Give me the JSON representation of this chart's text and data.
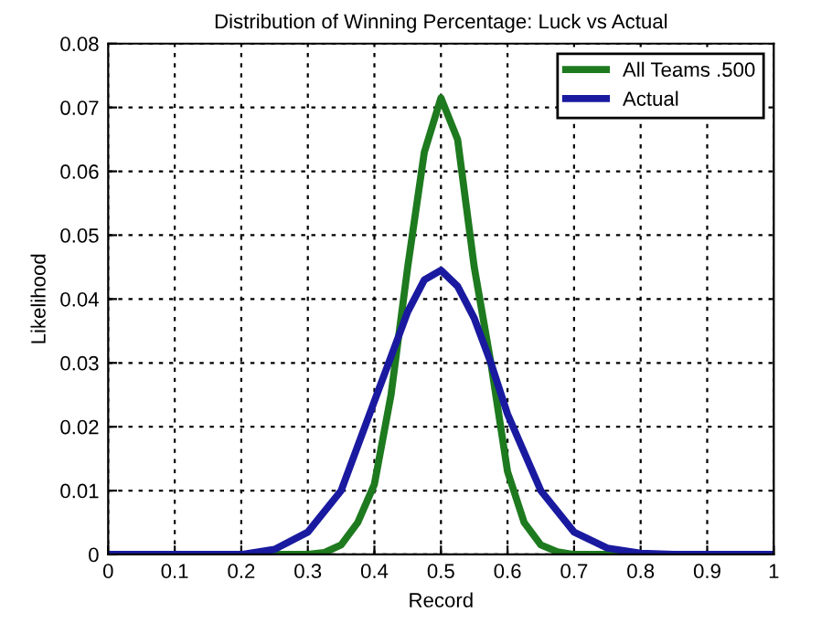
{
  "chart_data": {
    "type": "line",
    "title": "Distribution of Winning Percentage: Luck vs Actual",
    "xlabel": "Record",
    "ylabel": "Likelihood",
    "series": [
      {
        "name": "All Teams .500",
        "color": "#1e7a1e",
        "x": [
          0,
          0.3,
          0.325,
          0.35,
          0.375,
          0.4,
          0.425,
          0.45,
          0.475,
          0.5,
          0.525,
          0.55,
          0.575,
          0.6,
          0.625,
          0.65,
          0.675,
          0.7,
          1
        ],
        "values": [
          0,
          0,
          0.0003,
          0.0015,
          0.005,
          0.011,
          0.025,
          0.045,
          0.063,
          0.0715,
          0.065,
          0.045,
          0.03,
          0.013,
          0.005,
          0.0015,
          0.0004,
          0,
          0
        ]
      },
      {
        "name": "Actual",
        "color": "#1a1aa0",
        "x": [
          0,
          0.2,
          0.25,
          0.3,
          0.35,
          0.4,
          0.425,
          0.45,
          0.475,
          0.5,
          0.525,
          0.55,
          0.575,
          0.6,
          0.65,
          0.7,
          0.75,
          0.8,
          0.85,
          1
        ],
        "values": [
          0,
          0,
          0.0008,
          0.0035,
          0.01,
          0.024,
          0.031,
          0.038,
          0.043,
          0.0445,
          0.042,
          0.037,
          0.03,
          0.022,
          0.01,
          0.0035,
          0.001,
          0.0002,
          0,
          0
        ]
      }
    ],
    "xlim": [
      0,
      1
    ],
    "xticks": [
      0,
      0.1,
      0.2,
      0.3,
      0.4,
      0.5,
      0.6,
      0.7,
      0.8,
      0.9,
      1
    ],
    "ylim": [
      0,
      0.08
    ],
    "yticks": [
      0,
      0.01,
      0.02,
      0.03,
      0.04,
      0.05,
      0.06,
      0.07,
      0.08
    ],
    "grid": true,
    "legend": "top right",
    "line_style": "solid",
    "marker": "none"
  }
}
